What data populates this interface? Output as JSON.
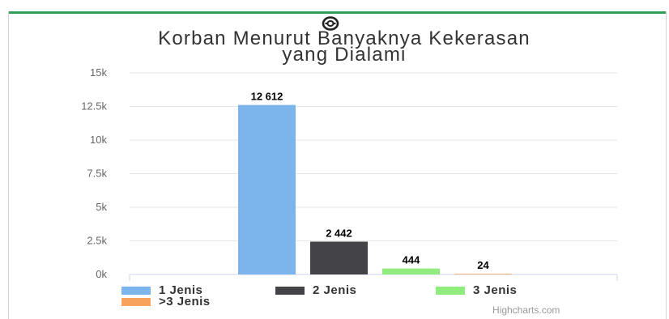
{
  "title_lines": [
    "Korban Menurut Banyaknya Kekerasan",
    "yang Dialami"
  ],
  "icon": "lifebuoy-icon",
  "credits": "Highcharts.com",
  "chart_data": {
    "type": "bar",
    "title": "Korban Menurut Banyaknya Kekerasan yang Dialami",
    "xlabel": "",
    "ylabel": "",
    "ylim": [
      0,
      15000
    ],
    "yticks": [
      0,
      2500,
      5000,
      7500,
      10000,
      12500,
      15000
    ],
    "ytick_labels": [
      "0k",
      "2.5k",
      "5k",
      "7.5k",
      "10k",
      "12.5k",
      "15k"
    ],
    "grid": true,
    "legend_position": "bottom",
    "series": [
      {
        "name": "1 Jenis",
        "value": 12612,
        "data_label": "12 612",
        "color": "#7cb5ec"
      },
      {
        "name": "2 Jenis",
        "value": 2442,
        "data_label": "2 442",
        "color": "#434348"
      },
      {
        "name": "3 Jenis",
        "value": 444,
        "data_label": "444",
        "color": "#90ed7d"
      },
      {
        "name": ">3 Jenis",
        "value": 24,
        "data_label": "24",
        "color": "#f7a35c"
      }
    ]
  }
}
